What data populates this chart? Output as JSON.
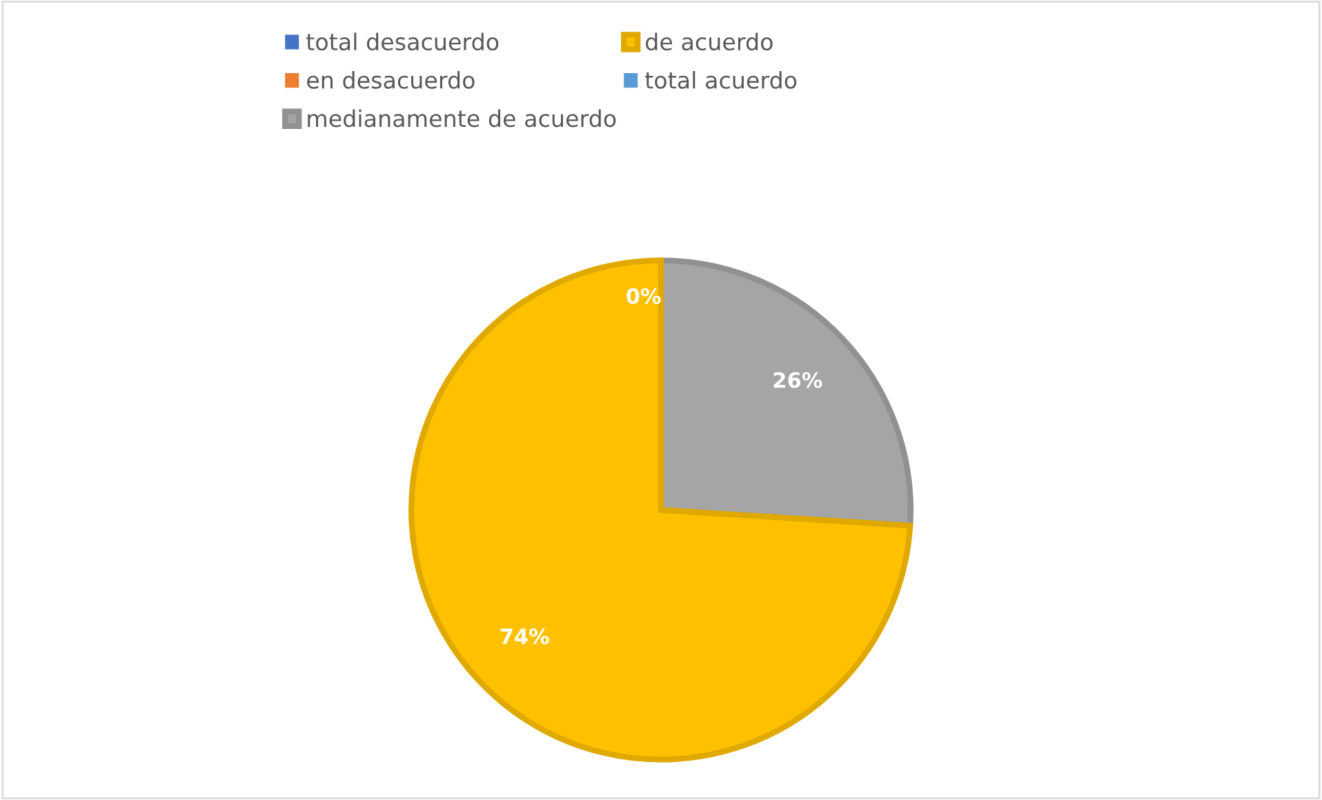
{
  "chart_data": {
    "type": "pie",
    "categories": [
      "total desacuerdo",
      "en desacuerdo",
      "medianamente de acuerdo",
      "de acuerdo",
      "total acuerdo"
    ],
    "values": [
      0,
      0,
      26,
      74,
      0
    ],
    "colors": [
      "#4472c4",
      "#ed7d31",
      "#a5a5a5",
      "#ffc000",
      "#5b9bd5"
    ],
    "value_labels": [
      null,
      null,
      "26%",
      "74%",
      "0%"
    ],
    "legend": "top"
  }
}
